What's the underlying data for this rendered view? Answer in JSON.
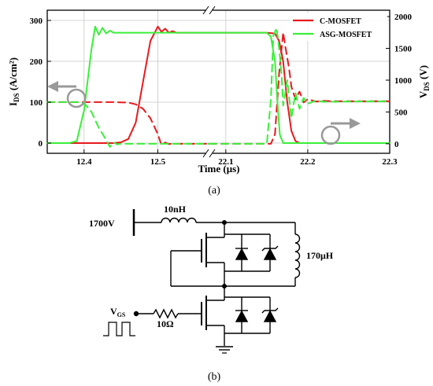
{
  "chart_data": {
    "type": "line",
    "xlabel": "Time (μs)",
    "ylabel_left": {
      "main": "I",
      "sub": "DS",
      "rest": " (A/cm²)"
    },
    "ylabel_right": {
      "main": "V",
      "sub": "DS",
      "rest": " (V)"
    },
    "x_ticks": [
      "12.4",
      "12.5",
      "22.1",
      "22.2",
      "22.3"
    ],
    "x_segments": [
      {
        "xmin": 12.35,
        "xmax": 12.57,
        "break_at_end": true
      },
      {
        "xmin": 22.08,
        "xmax": 22.3
      }
    ],
    "ylim_left": [
      -25,
      325
    ],
    "yticks_left": [
      0,
      100,
      200,
      300
    ],
    "ylim_right": [
      -150,
      2100
    ],
    "yticks_right": [
      0,
      500,
      1000,
      1500,
      2000
    ],
    "grid": true,
    "legend_position": "top-right",
    "series": [
      {
        "name": "C-MOSFET",
        "color": "#e8191e",
        "quantity": "IDS",
        "points": [
          [
            12.35,
            0
          ],
          [
            12.44,
            0
          ],
          [
            12.45,
            2
          ],
          [
            12.46,
            10
          ],
          [
            12.47,
            50
          ],
          [
            12.48,
            150
          ],
          [
            12.49,
            250
          ],
          [
            12.5,
            285
          ],
          [
            12.505,
            272
          ],
          [
            12.51,
            280
          ],
          [
            12.515,
            270
          ],
          [
            12.52,
            274
          ],
          [
            12.525,
            270
          ],
          [
            12.57,
            270
          ],
          [
            22.08,
            270
          ],
          [
            22.15,
            270
          ],
          [
            22.16,
            268
          ],
          [
            22.165,
            250
          ],
          [
            22.17,
            200
          ],
          [
            22.175,
            100
          ],
          [
            22.18,
            30
          ],
          [
            22.185,
            5
          ],
          [
            22.19,
            0
          ],
          [
            22.3,
            0
          ]
        ]
      },
      {
        "name": "C-MOSFET",
        "color": "#e8191e",
        "quantity": "VDS",
        "dashed": true,
        "points": [
          [
            12.35,
            655
          ],
          [
            12.44,
            655
          ],
          [
            12.46,
            648
          ],
          [
            12.47,
            620
          ],
          [
            12.48,
            550
          ],
          [
            12.49,
            400
          ],
          [
            12.5,
            150
          ],
          [
            12.505,
            -20
          ],
          [
            12.51,
            20
          ],
          [
            12.515,
            -5
          ],
          [
            12.52,
            2
          ],
          [
            12.525,
            0
          ],
          [
            12.57,
            0
          ],
          [
            22.08,
            0
          ],
          [
            22.155,
            0
          ],
          [
            22.16,
            150
          ],
          [
            22.165,
            1100
          ],
          [
            22.17,
            1750
          ],
          [
            22.173,
            1500
          ],
          [
            22.177,
            1200
          ],
          [
            22.18,
            900
          ],
          [
            22.185,
            700
          ],
          [
            22.19,
            820
          ],
          [
            22.195,
            650
          ],
          [
            22.2,
            700
          ],
          [
            22.21,
            665
          ],
          [
            22.22,
            675
          ],
          [
            22.23,
            670
          ],
          [
            22.3,
            670
          ]
        ]
      },
      {
        "name": "ASG-MOSFET",
        "color": "#3aef3a",
        "quantity": "IDS",
        "points": [
          [
            12.35,
            0
          ],
          [
            12.38,
            0
          ],
          [
            12.39,
            5
          ],
          [
            12.4,
            80
          ],
          [
            12.41,
            230
          ],
          [
            12.415,
            285
          ],
          [
            12.42,
            265
          ],
          [
            12.425,
            282
          ],
          [
            12.43,
            268
          ],
          [
            12.435,
            275
          ],
          [
            12.44,
            270
          ],
          [
            12.57,
            270
          ],
          [
            22.08,
            270
          ],
          [
            22.15,
            270
          ],
          [
            22.155,
            260
          ],
          [
            22.16,
            200
          ],
          [
            22.163,
            100
          ],
          [
            22.166,
            20
          ],
          [
            22.17,
            0
          ],
          [
            22.3,
            0
          ]
        ]
      },
      {
        "name": "ASG-MOSFET",
        "color": "#3aef3a",
        "quantity": "VDS",
        "dashed": true,
        "points": [
          [
            12.35,
            655
          ],
          [
            12.39,
            655
          ],
          [
            12.4,
            640
          ],
          [
            12.41,
            500
          ],
          [
            12.42,
            250
          ],
          [
            12.43,
            60
          ],
          [
            12.435,
            -50
          ],
          [
            12.44,
            20
          ],
          [
            12.445,
            -10
          ],
          [
            12.45,
            0
          ],
          [
            12.57,
            0
          ],
          [
            22.08,
            0
          ],
          [
            22.15,
            0
          ],
          [
            22.155,
            700
          ],
          [
            22.158,
            1700
          ],
          [
            22.162,
            1820
          ],
          [
            22.165,
            1500
          ],
          [
            22.168,
            1100
          ],
          [
            22.17,
            600
          ],
          [
            22.175,
            1000
          ],
          [
            22.18,
            400
          ],
          [
            22.185,
            800
          ],
          [
            22.19,
            550
          ],
          [
            22.195,
            720
          ],
          [
            22.2,
            630
          ],
          [
            22.21,
            680
          ],
          [
            22.22,
            660
          ],
          [
            22.3,
            670
          ]
        ]
      }
    ]
  },
  "captions": {
    "a": "(a)",
    "b": "(b)"
  },
  "circuit": {
    "supply_label": "1700V",
    "inductor_small_label": "10nH",
    "inductor_load_label": "170μH",
    "resistor_label": "10Ω",
    "vgs_label": {
      "main": "V",
      "sub": "GS"
    }
  }
}
